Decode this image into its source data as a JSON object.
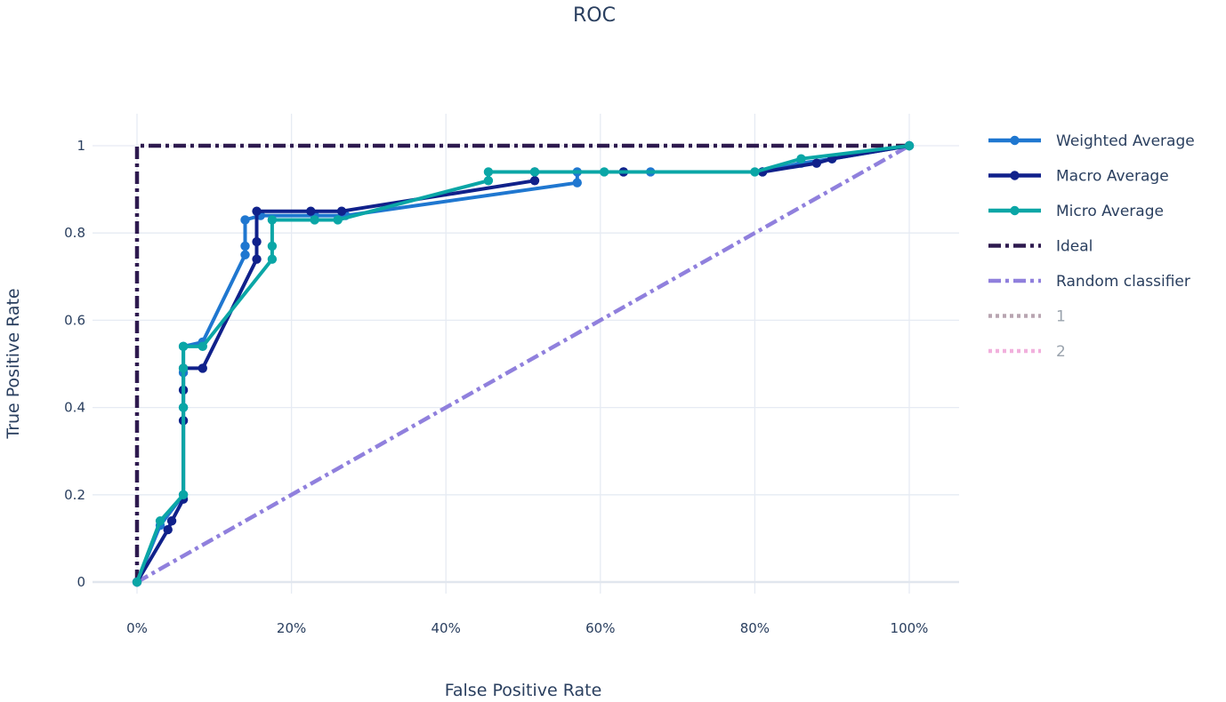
{
  "chart_data": {
    "type": "line",
    "title": "ROC",
    "xlabel": "False Positive Rate",
    "ylabel": "True Positive Rate",
    "xlim": [
      0,
      1
    ],
    "ylim": [
      0,
      1
    ],
    "x_tick_values": [
      0,
      0.2,
      0.4,
      0.6,
      0.8,
      1
    ],
    "x_tick_labels": [
      "0%",
      "20%",
      "40%",
      "60%",
      "80%",
      "100%"
    ],
    "y_tick_values": [
      0,
      0.2,
      0.4,
      0.6,
      0.8,
      1
    ],
    "y_tick_labels": [
      "0",
      "0.2",
      "0.4",
      "0.6",
      "0.8",
      "1"
    ],
    "grid": true,
    "legend_position": "right",
    "series": [
      {
        "name": "Weighted Average",
        "color": "#1f77d0",
        "dash": "solid",
        "markers": true,
        "points": [
          [
            0,
            0
          ],
          [
            0.03,
            0.13
          ],
          [
            0.06,
            0.2
          ],
          [
            0.06,
            0.4
          ],
          [
            0.06,
            0.48
          ],
          [
            0.06,
            0.54
          ],
          [
            0.085,
            0.55
          ],
          [
            0.14,
            0.75
          ],
          [
            0.14,
            0.77
          ],
          [
            0.14,
            0.83
          ],
          [
            0.16,
            0.84
          ],
          [
            0.23,
            0.84
          ],
          [
            0.27,
            0.84
          ],
          [
            0.57,
            0.915
          ],
          [
            0.57,
            0.94
          ],
          [
            0.63,
            0.94
          ],
          [
            0.665,
            0.94
          ],
          [
            0.81,
            0.94
          ],
          [
            0.86,
            0.96
          ],
          [
            0.9,
            0.97
          ],
          [
            1,
            1
          ]
        ]
      },
      {
        "name": "Macro Average",
        "color": "#10218b",
        "dash": "solid",
        "markers": true,
        "points": [
          [
            0,
            0
          ],
          [
            0.04,
            0.12
          ],
          [
            0.045,
            0.14
          ],
          [
            0.06,
            0.19
          ],
          [
            0.06,
            0.37
          ],
          [
            0.06,
            0.44
          ],
          [
            0.06,
            0.49
          ],
          [
            0.085,
            0.49
          ],
          [
            0.155,
            0.74
          ],
          [
            0.155,
            0.78
          ],
          [
            0.155,
            0.85
          ],
          [
            0.225,
            0.85
          ],
          [
            0.265,
            0.85
          ],
          [
            0.515,
            0.92
          ],
          [
            0.515,
            0.94
          ],
          [
            0.63,
            0.94
          ],
          [
            0.81,
            0.94
          ],
          [
            0.88,
            0.96
          ],
          [
            0.9,
            0.97
          ],
          [
            1,
            1
          ]
        ]
      },
      {
        "name": "Micro Average",
        "color": "#0aa6a6",
        "dash": "solid",
        "markers": true,
        "points": [
          [
            0,
            0
          ],
          [
            0.03,
            0.14
          ],
          [
            0.06,
            0.2
          ],
          [
            0.06,
            0.4
          ],
          [
            0.06,
            0.49
          ],
          [
            0.06,
            0.54
          ],
          [
            0.085,
            0.54
          ],
          [
            0.175,
            0.74
          ],
          [
            0.175,
            0.77
          ],
          [
            0.175,
            0.83
          ],
          [
            0.23,
            0.83
          ],
          [
            0.26,
            0.83
          ],
          [
            0.455,
            0.92
          ],
          [
            0.455,
            0.94
          ],
          [
            0.515,
            0.94
          ],
          [
            0.605,
            0.94
          ],
          [
            0.8,
            0.94
          ],
          [
            0.86,
            0.97
          ],
          [
            1,
            1
          ]
        ]
      },
      {
        "name": "Ideal",
        "color": "#2e1a4f",
        "dash": "dashdot",
        "markers": false,
        "points": [
          [
            0,
            0
          ],
          [
            0,
            1
          ],
          [
            1,
            1
          ]
        ]
      },
      {
        "name": "Random classifier",
        "color": "#9080dd",
        "dash": "dashdot",
        "markers": false,
        "points": [
          [
            0,
            0
          ],
          [
            1,
            1
          ]
        ]
      },
      {
        "name": "1",
        "color": "#8a6a7e",
        "dash": "dot",
        "markers": false,
        "legendonly": true,
        "points": []
      },
      {
        "name": "2",
        "color": "#e87dc8",
        "dash": "dot",
        "markers": false,
        "legendonly": true,
        "points": []
      }
    ]
  }
}
